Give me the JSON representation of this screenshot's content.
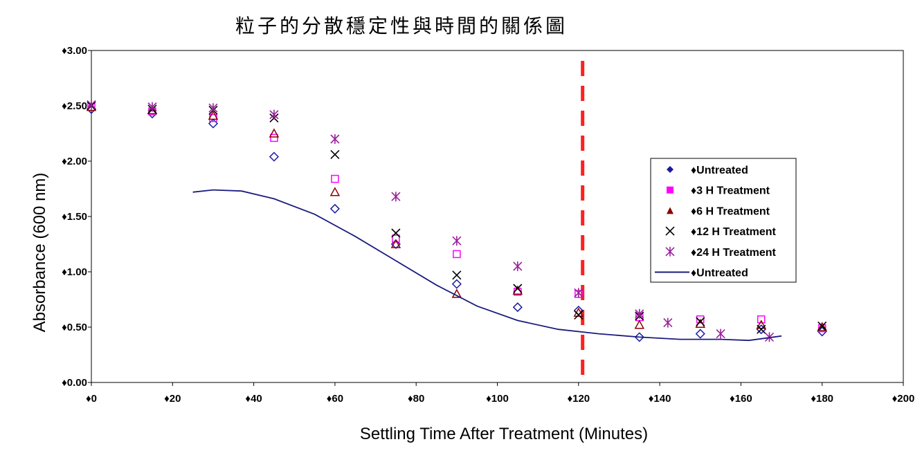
{
  "chart_data": {
    "type": "scatter",
    "title": "粒子的分散穩定性與時間的關係圖",
    "xlabel": "Settling Time After Treatment  (Minutes)",
    "ylabel": "Absorbance (600 nm)",
    "xlim": [
      0,
      200
    ],
    "ylim": [
      0,
      3
    ],
    "x_ticks": [
      0,
      20,
      40,
      60,
      80,
      100,
      120,
      140,
      160,
      180,
      200
    ],
    "y_ticks": [
      0,
      0.5,
      1,
      1.5,
      2,
      2.5,
      3
    ],
    "x_tick_labels": [
      "♦0",
      "♦20",
      "♦40",
      "♦60",
      "♦80",
      "♦100",
      "♦120",
      "♦140",
      "♦160",
      "♦180",
      "♦200"
    ],
    "y_tick_labels": [
      "♦0.00",
      "♦0.50",
      "♦1.00",
      "♦1.50",
      "♦2.00",
      "♦2.50",
      "♦3.00"
    ],
    "grid": false,
    "legend_position": "right",
    "reference_line": {
      "x": 121,
      "color": "#ff2020",
      "style": "dashed"
    },
    "series": [
      {
        "name": "♦Untreated",
        "marker": "diamond",
        "color": "#1a1aa0",
        "points": [
          [
            0,
            2.47
          ],
          [
            15,
            2.43
          ],
          [
            30,
            2.34
          ],
          [
            45,
            2.04
          ],
          [
            60,
            1.57
          ],
          [
            75,
            1.25
          ],
          [
            90,
            0.89
          ],
          [
            105,
            0.68
          ],
          [
            120,
            0.65
          ],
          [
            135,
            0.41
          ],
          [
            150,
            0.44
          ],
          [
            165,
            0.48
          ],
          [
            180,
            0.46
          ]
        ]
      },
      {
        "name": "♦3 H Treatment",
        "marker": "square",
        "color": "#ff00ff",
        "points": [
          [
            0,
            2.49
          ],
          [
            15,
            2.45
          ],
          [
            30,
            2.39
          ],
          [
            45,
            2.21
          ],
          [
            60,
            1.84
          ],
          [
            75,
            1.3
          ],
          [
            90,
            1.16
          ],
          [
            105,
            0.82
          ],
          [
            120,
            0.8
          ],
          [
            135,
            0.59
          ],
          [
            150,
            0.57
          ],
          [
            165,
            0.57
          ],
          [
            180,
            0.49
          ]
        ]
      },
      {
        "name": "♦6 H Treatment",
        "marker": "triangle",
        "color": "#8b0000",
        "points": [
          [
            0,
            2.49
          ],
          [
            15,
            2.46
          ],
          [
            30,
            2.41
          ],
          [
            45,
            2.25
          ],
          [
            60,
            1.72
          ],
          [
            75,
            1.25
          ],
          [
            90,
            0.8
          ],
          [
            105,
            0.83
          ],
          [
            120,
            0.63
          ],
          [
            135,
            0.52
          ],
          [
            150,
            0.53
          ],
          [
            165,
            0.52
          ],
          [
            180,
            0.5
          ]
        ]
      },
      {
        "name": "♦12 H Treatment",
        "marker": "x",
        "color": "#000000",
        "points": [
          [
            0,
            2.5
          ],
          [
            15,
            2.47
          ],
          [
            30,
            2.46
          ],
          [
            45,
            2.39
          ],
          [
            60,
            2.06
          ],
          [
            75,
            1.35
          ],
          [
            90,
            0.97
          ],
          [
            105,
            0.85
          ],
          [
            120,
            0.61
          ],
          [
            135,
            0.6
          ],
          [
            150,
            0.55
          ],
          [
            165,
            0.48
          ],
          [
            180,
            0.51
          ]
        ]
      },
      {
        "name": "♦24 H Treatment",
        "marker": "asterisk",
        "color": "#9b1f9b",
        "points": [
          [
            0,
            2.51
          ],
          [
            15,
            2.49
          ],
          [
            30,
            2.48
          ],
          [
            45,
            2.42
          ],
          [
            60,
            2.2
          ],
          [
            75,
            1.68
          ],
          [
            90,
            1.28
          ],
          [
            105,
            1.05
          ],
          [
            120,
            0.81
          ],
          [
            135,
            0.62
          ],
          [
            142,
            0.54
          ],
          [
            155,
            0.44
          ],
          [
            167,
            0.41
          ]
        ]
      },
      {
        "name": "♦Untreated",
        "marker": "line",
        "color": "#1a1a80",
        "points": [
          [
            25,
            1.72
          ],
          [
            30,
            1.74
          ],
          [
            37,
            1.73
          ],
          [
            45,
            1.66
          ],
          [
            55,
            1.52
          ],
          [
            65,
            1.32
          ],
          [
            75,
            1.1
          ],
          [
            85,
            0.88
          ],
          [
            95,
            0.69
          ],
          [
            105,
            0.56
          ],
          [
            115,
            0.48
          ],
          [
            125,
            0.44
          ],
          [
            135,
            0.41
          ],
          [
            145,
            0.39
          ],
          [
            155,
            0.39
          ],
          [
            162,
            0.38
          ],
          [
            170,
            0.42
          ]
        ]
      }
    ]
  }
}
